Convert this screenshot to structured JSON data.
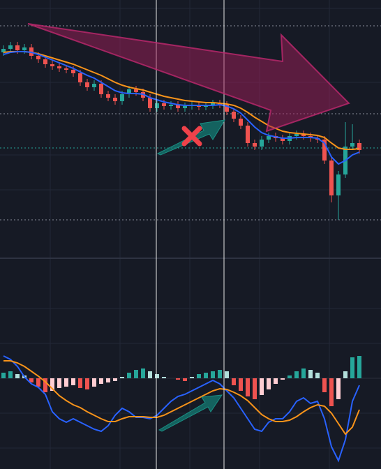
{
  "chart_data": [
    {
      "type": "candlestick",
      "up_color": "#26a69a",
      "down_color": "#ef5350",
      "ylim": [
        0,
        340
      ],
      "open": [
        265,
        270,
        275,
        268,
        272,
        260,
        255,
        248,
        245,
        242,
        240,
        235,
        222,
        215,
        220,
        205,
        200,
        195,
        205,
        212,
        208,
        200,
        185,
        192,
        188,
        190,
        185,
        188,
        190,
        187,
        189,
        192,
        190,
        180,
        170,
        160,
        135,
        130,
        140,
        145,
        142,
        138,
        145,
        148,
        145,
        142,
        140,
        110,
        60,
        90,
        130,
        135
      ],
      "high": [
        275,
        280,
        280,
        277,
        277,
        265,
        260,
        253,
        250,
        247,
        245,
        240,
        227,
        225,
        225,
        210,
        205,
        210,
        217,
        217,
        213,
        205,
        197,
        197,
        195,
        195,
        193,
        195,
        195,
        194,
        197,
        197,
        195,
        185,
        175,
        165,
        140,
        145,
        150,
        150,
        147,
        150,
        153,
        153,
        150,
        147,
        145,
        115,
        95,
        165,
        162,
        140
      ],
      "low": [
        260,
        265,
        263,
        263,
        255,
        250,
        243,
        240,
        237,
        235,
        230,
        217,
        210,
        210,
        200,
        195,
        190,
        190,
        200,
        203,
        195,
        180,
        180,
        183,
        183,
        180,
        180,
        183,
        182,
        182,
        184,
        185,
        175,
        165,
        155,
        130,
        125,
        125,
        135,
        137,
        133,
        133,
        140,
        140,
        137,
        135,
        105,
        50,
        25,
        85,
        125,
        120
      ],
      "close": [
        270,
        275,
        268,
        272,
        260,
        255,
        248,
        245,
        242,
        240,
        235,
        222,
        215,
        220,
        205,
        200,
        195,
        205,
        212,
        208,
        200,
        185,
        192,
        188,
        190,
        185,
        188,
        190,
        187,
        189,
        192,
        190,
        180,
        170,
        160,
        135,
        130,
        140,
        145,
        142,
        138,
        145,
        148,
        145,
        142,
        140,
        110,
        60,
        90,
        130,
        135,
        125
      ],
      "lines": [
        {
          "color": "#f7931a",
          "values": [
            265,
            266,
            266,
            266,
            265,
            263,
            260,
            257,
            254,
            251,
            248,
            244,
            240,
            236,
            232,
            227,
            222,
            218,
            215,
            213,
            211,
            208,
            205,
            202,
            200,
            198,
            196,
            195,
            194,
            193,
            193,
            192,
            191,
            189,
            185,
            179,
            172,
            166,
            160,
            156,
            152,
            150,
            149,
            148,
            147,
            146,
            143,
            135,
            128,
            126,
            126,
            127
          ]
        },
        {
          "color": "#2962ff",
          "values": [
            262,
            265,
            266,
            266,
            265,
            262,
            258,
            254,
            250,
            246,
            242,
            237,
            232,
            228,
            222,
            216,
            210,
            207,
            206,
            206,
            205,
            200,
            197,
            194,
            192,
            190,
            189,
            189,
            189,
            189,
            189,
            190,
            188,
            184,
            178,
            168,
            158,
            150,
            146,
            144,
            142,
            142,
            143,
            143,
            143,
            142,
            135,
            115,
            105,
            110,
            118,
            122
          ]
        }
      ]
    },
    {
      "type": "macd",
      "ylim": [
        -130,
        170
      ],
      "positive_color": "#26a69a",
      "positive_fade_color": "#b2dfdb",
      "negative_color": "#ef5350",
      "negative_fade_color": "#ffcdd2",
      "histogram": [
        8,
        10,
        6,
        4,
        -6,
        -12,
        -20,
        -18,
        -14,
        -12,
        -10,
        -14,
        -16,
        -12,
        -8,
        -6,
        -4,
        2,
        8,
        12,
        14,
        10,
        6,
        2,
        0,
        -2,
        -4,
        2,
        6,
        8,
        10,
        12,
        10,
        -10,
        -18,
        -26,
        -30,
        -24,
        -16,
        -8,
        -2,
        4,
        10,
        14,
        12,
        8,
        -20,
        -40,
        -30,
        10,
        30,
        32
      ],
      "lines": [
        {
          "color": "#2962ff",
          "values": [
            32,
            27,
            17,
            2,
            -8,
            -13,
            -23,
            -48,
            -58,
            -63,
            -58,
            -63,
            -68,
            -73,
            -76,
            -68,
            -53,
            -43,
            -48,
            -56,
            -56,
            -58,
            -53,
            -43,
            -33,
            -26,
            -23,
            -18,
            -13,
            -8,
            -3,
            -8,
            -18,
            -28,
            -43,
            -58,
            -73,
            -76,
            -63,
            -58,
            -58,
            -48,
            -33,
            -28,
            -36,
            -33,
            -58,
            -98,
            -118,
            -88,
            -33,
            -10
          ]
        },
        {
          "color": "#f7931a",
          "values": [
            25,
            25,
            22,
            17,
            10,
            3,
            -5,
            -15,
            -25,
            -32,
            -38,
            -42,
            -48,
            -53,
            -58,
            -62,
            -62,
            -58,
            -55,
            -55,
            -55,
            -56,
            -56,
            -53,
            -48,
            -43,
            -38,
            -33,
            -28,
            -23,
            -18,
            -15,
            -16,
            -20,
            -25,
            -32,
            -42,
            -52,
            -58,
            -62,
            -62,
            -60,
            -55,
            -48,
            -42,
            -38,
            -40,
            -50,
            -65,
            -80,
            -70,
            -45
          ]
        }
      ]
    }
  ]
}
